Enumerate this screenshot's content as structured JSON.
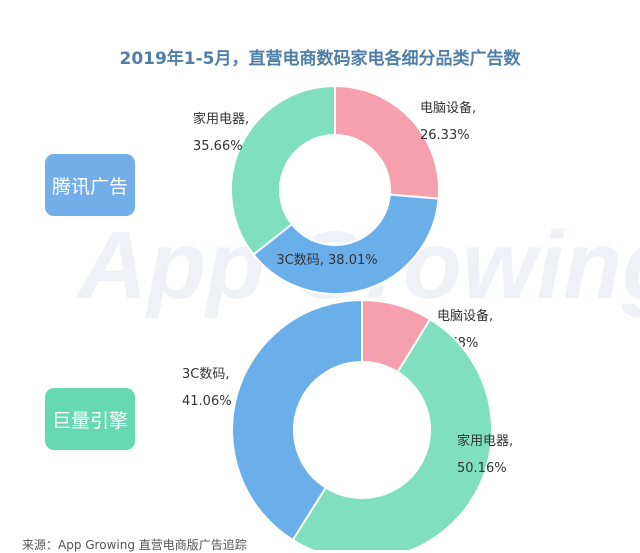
{
  "title": "2019年1-5月，直营电商数码家电各细分品类广告数",
  "watermark": "App Growing",
  "source": "来源：App Growing 直营电商版广告追踪",
  "colors": {
    "电脑设备": "#f7a0ad",
    "家用电器": "#7fdfbf",
    "3C数码": "#6aaeea",
    "tencent_button": "#74aee8",
    "juliang_button": "#66d9b2",
    "title": "#4f7fa8"
  },
  "chart_data": [
    {
      "type": "pie",
      "donut": true,
      "platform": "腾讯广告",
      "slices": [
        {
          "label": "电脑设备,",
          "category": "电脑设备",
          "value": 26.33,
          "value_text": "26.33%"
        },
        {
          "label": "3C数码,",
          "category": "3C数码",
          "value": 38.01,
          "value_text": "38.01%"
        },
        {
          "label": "家用电器,",
          "category": "家用电器",
          "value": 35.66,
          "value_text": "35.66%"
        }
      ]
    },
    {
      "type": "pie",
      "donut": true,
      "platform": "巨量引擎",
      "slices": [
        {
          "label": "电脑设备,",
          "category": "电脑设备",
          "value": 8.78,
          "value_text": "8.78%"
        },
        {
          "label": "家用电器,",
          "category": "家用电器",
          "value": 50.16,
          "value_text": "50.16%"
        },
        {
          "label": "3C数码,",
          "category": "3C数码",
          "value": 41.06,
          "value_text": "41.06%"
        }
      ]
    }
  ]
}
